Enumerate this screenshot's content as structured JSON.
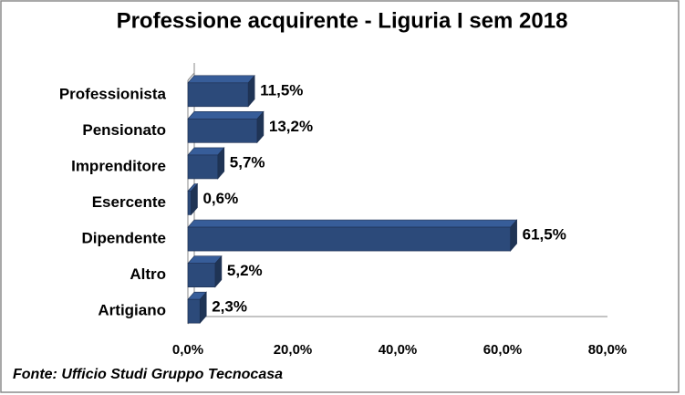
{
  "chart_data": {
    "type": "bar",
    "orientation": "horizontal",
    "title": "Professione acquirente - Liguria I sem 2018",
    "categories": [
      "Professionista",
      "Pensionato",
      "Imprenditore",
      "Esercente",
      "Dipendente",
      "Altro",
      "Artigiano"
    ],
    "values": [
      11.5,
      13.2,
      5.7,
      0.6,
      61.5,
      5.2,
      2.3
    ],
    "value_labels": [
      "11,5%",
      "13,2%",
      "5,7%",
      "0,6%",
      "61,5%",
      "5,2%",
      "2,3%"
    ],
    "color": "#2c4a7a",
    "xlim": [
      0,
      80
    ],
    "xticks": [
      {
        "value": 0,
        "label": "0,0%"
      },
      {
        "value": 20,
        "label": "20,0%"
      },
      {
        "value": 40,
        "label": "40,0%"
      },
      {
        "value": 60,
        "label": "60,0%"
      },
      {
        "value": 80,
        "label": "80,0%"
      }
    ],
    "source": "Fonte: Ufficio Studi Gruppo Tecnocasa"
  }
}
